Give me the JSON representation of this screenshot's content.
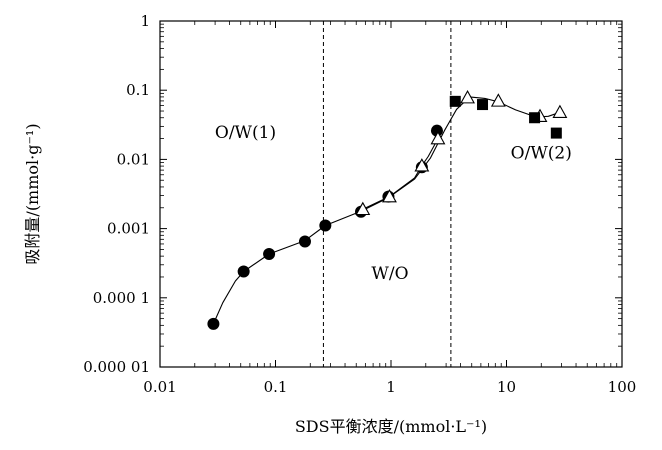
{
  "chart_data": {
    "type": "scatter",
    "xlabel": "SDS平衡浓度/(mmol·L⁻¹)",
    "ylabel": "吸附量/(mmol·g⁻¹)",
    "x_scale": "log",
    "y_scale": "log",
    "xlim": [
      0.01,
      100
    ],
    "ylim": [
      1e-05,
      1
    ],
    "x_ticks": [
      {
        "value": 0.01,
        "label": "0.01"
      },
      {
        "value": 0.1,
        "label": "0.1"
      },
      {
        "value": 1,
        "label": "1"
      },
      {
        "value": 10,
        "label": "10"
      },
      {
        "value": 100,
        "label": "100"
      }
    ],
    "y_ticks": [
      {
        "value": 1,
        "label": "1"
      },
      {
        "value": 0.1,
        "label": "0.1"
      },
      {
        "value": 0.01,
        "label": "0.01"
      },
      {
        "value": 0.001,
        "label": "0.001"
      },
      {
        "value": 0.0001,
        "label": "0.000 1"
      },
      {
        "value": 1e-05,
        "label": "0.000 01"
      }
    ],
    "grid": false,
    "vlines": [
      0.26,
      3.3
    ],
    "regions": [
      {
        "label": "O/W(1)",
        "x": 0.055,
        "y": 0.025
      },
      {
        "label": "W/O",
        "x": 0.98,
        "y": 0.00023
      },
      {
        "label": "O/W(2)",
        "x": 20,
        "y": 0.0125
      }
    ],
    "series": [
      {
        "marker": "filled-circle",
        "x": [
          0.029,
          0.053,
          0.088,
          0.18,
          0.27,
          0.55,
          0.95,
          1.85,
          2.5
        ],
        "y": [
          4.2e-05,
          0.00024,
          0.00043,
          0.00065,
          0.00111,
          0.00175,
          0.0029,
          0.0077,
          0.026
        ]
      },
      {
        "marker": "open-triangle",
        "x": [
          0.57,
          0.97,
          1.85,
          2.55,
          4.6,
          8.5,
          19.5,
          29
        ],
        "y": [
          0.0019,
          0.0029,
          0.0081,
          0.02,
          0.078,
          0.07,
          0.042,
          0.048
        ]
      },
      {
        "marker": "filled-square",
        "x": [
          3.6,
          6.2,
          17.5,
          27
        ],
        "y": [
          0.069,
          0.062,
          0.04,
          0.024
        ]
      }
    ],
    "curves": [
      {
        "x": [
          0.029,
          0.035,
          0.045,
          0.053,
          0.088,
          0.18,
          0.27,
          0.55,
          0.95,
          1.6,
          2.2,
          2.9,
          3.7,
          4.8,
          6.5,
          8.5,
          12,
          18,
          23,
          29
        ],
        "y": [
          4.2e-05,
          8.5e-05,
          0.000175,
          0.00024,
          0.00043,
          0.00067,
          0.00111,
          0.00178,
          0.0028,
          0.0052,
          0.0105,
          0.026,
          0.053,
          0.08,
          0.076,
          0.068,
          0.052,
          0.041,
          0.042,
          0.048
        ]
      },
      {
        "x": [
          0.57,
          0.97,
          1.6,
          1.85,
          2.1,
          2.55
        ],
        "y": [
          0.0019,
          0.0029,
          0.0054,
          0.0081,
          0.011,
          0.02
        ]
      }
    ]
  }
}
